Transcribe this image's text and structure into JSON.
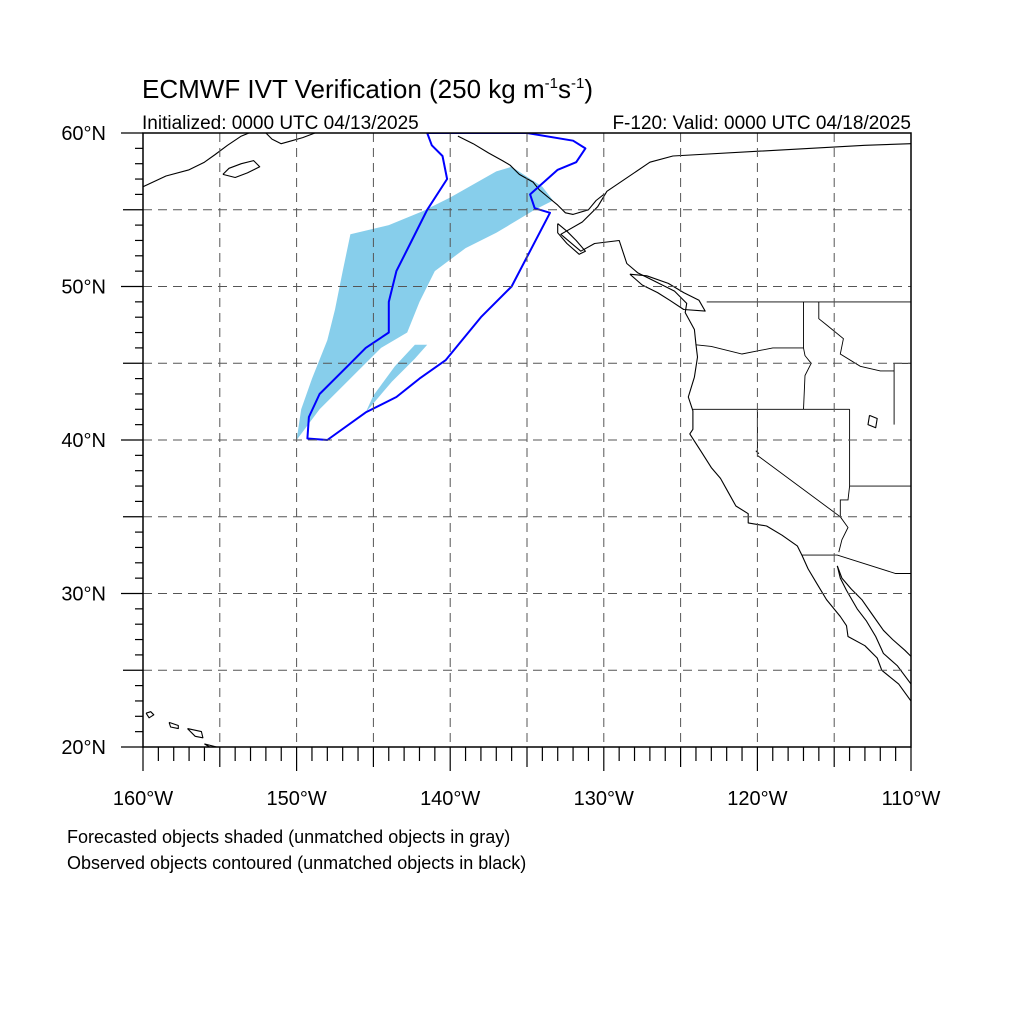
{
  "header": {
    "title_main": "ECMWF IVT Verification (250 kg m",
    "title_sup1": "-1",
    "title_mid": "s",
    "title_sup2": "-1",
    "title_end": ")",
    "initialized": "Initialized: 0000 UTC 04/13/2025",
    "valid": "F-120: Valid: 0000 UTC 04/18/2025"
  },
  "axes": {
    "lon_range": [
      -160,
      -110
    ],
    "lat_range": [
      20,
      60
    ],
    "y_ticks": [
      {
        "value": 20,
        "label": "20°N"
      },
      {
        "value": 30,
        "label": "30°N"
      },
      {
        "value": 40,
        "label": "40°N"
      },
      {
        "value": 50,
        "label": "50°N"
      },
      {
        "value": 60,
        "label": "60°N"
      }
    ],
    "x_ticks": [
      {
        "value": -160,
        "label": "160°W"
      },
      {
        "value": -150,
        "label": "150°W"
      },
      {
        "value": -140,
        "label": "140°W"
      },
      {
        "value": -130,
        "label": "130°W"
      },
      {
        "value": -120,
        "label": "120°W"
      },
      {
        "value": -110,
        "label": "110°W"
      }
    ],
    "grid_spacing_deg": 5
  },
  "colors": {
    "forecast_fill": "#87ceeb",
    "observed_contour": "#0000ff",
    "grid": "#555555",
    "coastline": "#000000"
  },
  "objects": {
    "forecast": [
      {
        "name": "forecast-ivt-object",
        "matched": true,
        "polygon": [
          [
            -150,
            40
          ],
          [
            -148.5,
            42
          ],
          [
            -146,
            44.5
          ],
          [
            -144.5,
            46
          ],
          [
            -142.8,
            47
          ],
          [
            -142,
            49
          ],
          [
            -141,
            51
          ],
          [
            -139,
            52.5
          ],
          [
            -137,
            53.5
          ],
          [
            -134.5,
            55
          ],
          [
            -133.3,
            55.6
          ],
          [
            -134,
            56.5
          ],
          [
            -136,
            57.8
          ],
          [
            -137,
            57.5
          ],
          [
            -140,
            55.8
          ],
          [
            -141.8,
            54.9
          ],
          [
            -144,
            54
          ],
          [
            -146.5,
            53.4
          ],
          [
            -147,
            51
          ],
          [
            -147.5,
            48.5
          ],
          [
            -148,
            46.5
          ],
          [
            -149,
            44
          ],
          [
            -149.7,
            42
          ]
        ]
      },
      {
        "name": "forecast-ivt-fragment",
        "matched": true,
        "polygon": [
          [
            -145.5,
            41.8
          ],
          [
            -143.8,
            43.8
          ],
          [
            -142.3,
            45.3
          ],
          [
            -141.5,
            46.2
          ],
          [
            -142.3,
            46.2
          ],
          [
            -143.6,
            44.8
          ],
          [
            -145,
            42.9
          ]
        ]
      }
    ],
    "observed": [
      {
        "name": "observed-ivt-contour",
        "matched": true,
        "polygon": [
          [
            -148,
            40
          ],
          [
            -145.5,
            41.8
          ],
          [
            -143.5,
            42.8
          ],
          [
            -142,
            44
          ],
          [
            -140.3,
            45.2
          ],
          [
            -138,
            48
          ],
          [
            -136,
            50
          ],
          [
            -133.5,
            54.8
          ],
          [
            -134.5,
            55.1
          ],
          [
            -134.8,
            56
          ],
          [
            -133,
            57.6
          ],
          [
            -131.8,
            58.1
          ],
          [
            -131.2,
            59
          ],
          [
            -132,
            59.5
          ],
          [
            -135,
            60
          ],
          [
            -141.5,
            60
          ],
          [
            -141.2,
            59.2
          ],
          [
            -140.5,
            58.5
          ],
          [
            -140.2,
            57
          ],
          [
            -141.5,
            55
          ],
          [
            -142.5,
            53
          ],
          [
            -143.5,
            51
          ],
          [
            -144,
            49
          ],
          [
            -144,
            47
          ],
          [
            -145.5,
            46
          ],
          [
            -146.5,
            45
          ],
          [
            -148.5,
            43
          ],
          [
            -149.2,
            41.5
          ],
          [
            -149.3,
            40.1
          ]
        ]
      }
    ]
  },
  "coastlines": {
    "north_america": [
      [
        -110,
        59.3
      ],
      [
        -113,
        59.2
      ],
      [
        -125.5,
        58.5
      ],
      [
        -127,
        58.1
      ],
      [
        -129.8,
        56.2
      ],
      [
        -130.4,
        55.2
      ],
      [
        -131.4,
        54.2
      ],
      [
        -132.8,
        53.4
      ],
      [
        -131.5,
        52.3
      ],
      [
        -130.6,
        52.8
      ],
      [
        -129,
        53
      ],
      [
        -128.5,
        51.5
      ],
      [
        -127.8,
        50.9
      ],
      [
        -126.8,
        50.4
      ],
      [
        -125.4,
        49.7
      ],
      [
        -124.6,
        48.9
      ],
      [
        -124.7,
        48.3
      ],
      [
        -124.1,
        47.2
      ],
      [
        -124,
        46.2
      ],
      [
        -123.9,
        45.4
      ],
      [
        -124.1,
        44.1
      ],
      [
        -124.5,
        42.8
      ],
      [
        -124.2,
        41.9
      ],
      [
        -124.2,
        40.7
      ],
      [
        -124.4,
        40.4
      ],
      [
        -123.7,
        39.3
      ],
      [
        -123,
        38.2
      ],
      [
        -122.4,
        37.5
      ],
      [
        -121.9,
        36.6
      ],
      [
        -121.4,
        35.7
      ],
      [
        -120.6,
        35.2
      ],
      [
        -120.6,
        34.6
      ],
      [
        -119.4,
        34.4
      ],
      [
        -118.4,
        33.8
      ],
      [
        -117.4,
        33.1
      ],
      [
        -117.1,
        32.5
      ],
      [
        -116.7,
        31.6
      ],
      [
        -116.1,
        30.6
      ],
      [
        -115.5,
        29.6
      ],
      [
        -114.6,
        28.5
      ],
      [
        -114.2,
        27.9
      ],
      [
        -114.1,
        27.2
      ],
      [
        -113,
        26.6
      ],
      [
        -112.2,
        25.8
      ],
      [
        -111.9,
        25
      ],
      [
        -110.8,
        24.1
      ],
      [
        -110,
        23
      ]
    ],
    "gulf_california": [
      [
        -114.8,
        31.8
      ],
      [
        -114.5,
        31
      ],
      [
        -113.9,
        30.3
      ],
      [
        -113.2,
        29.6
      ],
      [
        -112.5,
        28.6
      ],
      [
        -111.8,
        27.6
      ],
      [
        -111.2,
        27
      ],
      [
        -110.4,
        26.3
      ],
      [
        -110,
        25.9
      ]
    ],
    "mainland_mexico": [
      [
        -110,
        24.1
      ],
      [
        -110.9,
        25.3
      ],
      [
        -111.8,
        26.1
      ],
      [
        -112.3,
        27.2
      ],
      [
        -112.9,
        28.2
      ],
      [
        -113.5,
        29
      ],
      [
        -114.2,
        30.2
      ],
      [
        -114.6,
        31
      ],
      [
        -114.8,
        31.8
      ]
    ],
    "alaska_gulf": [
      [
        -160,
        56.5
      ],
      [
        -158.5,
        57.2
      ],
      [
        -157,
        57.6
      ],
      [
        -156,
        58.1
      ],
      [
        -155.3,
        58.6
      ],
      [
        -154.5,
        59.2
      ],
      [
        -153.6,
        59.8
      ],
      [
        -153.1,
        60
      ]
    ],
    "kenai": [
      [
        -152,
        60
      ],
      [
        -151.6,
        59.6
      ],
      [
        -151,
        59.3
      ],
      [
        -150.3,
        59.5
      ],
      [
        -149.6,
        59.7
      ],
      [
        -148.8,
        60
      ]
    ],
    "prince_william": [
      [
        -147.5,
        60
      ],
      [
        -146,
        60
      ],
      [
        -145,
        60
      ]
    ],
    "alaska_panhandle": [
      [
        -139.5,
        59.8
      ],
      [
        -138.5,
        59.3
      ],
      [
        -137.5,
        58.7
      ],
      [
        -136.6,
        58.2
      ],
      [
        -136.1,
        57.9
      ],
      [
        -135.5,
        57.3
      ],
      [
        -134.6,
        56.8
      ],
      [
        -134.2,
        56.3
      ],
      [
        -133.6,
        55.8
      ],
      [
        -133,
        55.3
      ],
      [
        -132.5,
        54.8
      ],
      [
        -132,
        54.7
      ],
      [
        -131,
        55
      ],
      [
        -130.5,
        55.6
      ],
      [
        -130,
        56
      ]
    ],
    "kodiak": [
      [
        -154.8,
        57.3
      ],
      [
        -154,
        57.1
      ],
      [
        -153.2,
        57.4
      ],
      [
        -152.4,
        57.8
      ],
      [
        -152.8,
        58.2
      ],
      [
        -153.6,
        58
      ],
      [
        -154.4,
        57.7
      ],
      [
        -154.8,
        57.3
      ]
    ],
    "vancouver_island": [
      [
        -128.3,
        50.8
      ],
      [
        -127.5,
        50.1
      ],
      [
        -126.5,
        49.6
      ],
      [
        -125.7,
        49.1
      ],
      [
        -124.8,
        48.5
      ],
      [
        -123.4,
        48.4
      ],
      [
        -123.8,
        49.1
      ],
      [
        -124.8,
        49.6
      ],
      [
        -125.8,
        50.2
      ],
      [
        -127.2,
        50.7
      ],
      [
        -128.3,
        50.8
      ]
    ],
    "haida_gwaii": [
      [
        -133,
        54.1
      ],
      [
        -132.4,
        53.6
      ],
      [
        -131.8,
        53
      ],
      [
        -131.2,
        52.3
      ],
      [
        -131.6,
        52.1
      ],
      [
        -132.4,
        52.8
      ],
      [
        -133,
        53.5
      ],
      [
        -133,
        54.1
      ]
    ],
    "hawaii_kauai": [
      [
        -159.8,
        22.2
      ],
      [
        -159.5,
        22.3
      ],
      [
        -159.3,
        22.1
      ],
      [
        -159.6,
        21.9
      ],
      [
        -159.8,
        22.2
      ]
    ],
    "hawaii_oahu": [
      [
        -158.3,
        21.6
      ],
      [
        -157.7,
        21.4
      ],
      [
        -157.7,
        21.2
      ],
      [
        -158.2,
        21.3
      ],
      [
        -158.3,
        21.6
      ]
    ],
    "hawaii_maui": [
      [
        -157.1,
        21.2
      ],
      [
        -156.2,
        21
      ],
      [
        -156.1,
        20.6
      ],
      [
        -156.6,
        20.7
      ],
      [
        -157.1,
        21.2
      ]
    ],
    "hawaii_big_island": [
      [
        -156,
        20.2
      ],
      [
        -155.2,
        20
      ],
      [
        -155.1,
        19.9
      ],
      [
        -155.5,
        19.9
      ],
      [
        -156,
        20.2
      ]
    ],
    "great_salt_lake": [
      [
        -112.7,
        41.6
      ],
      [
        -112.2,
        41.4
      ],
      [
        -112.3,
        40.8
      ],
      [
        -112.8,
        41
      ],
      [
        -112.7,
        41.6
      ]
    ],
    "lake_tahoe_marker": [
      [
        -120.1,
        39.3
      ],
      [
        -119.9,
        39.1
      ]
    ]
  },
  "borders": {
    "us_canada": [
      [
        -123.3,
        49
      ],
      [
        -110,
        49
      ]
    ],
    "mexico_us": [
      [
        -117.1,
        32.5
      ],
      [
        -114.8,
        32.5
      ],
      [
        -111,
        31.3
      ],
      [
        -110,
        31.3
      ]
    ],
    "wa_or": [
      [
        -124,
        46.2
      ],
      [
        -123,
        46.1
      ],
      [
        -121,
        45.6
      ],
      [
        -119,
        46
      ],
      [
        -117,
        46
      ]
    ],
    "id_west": [
      [
        -117,
        49
      ],
      [
        -117,
        46
      ],
      [
        -116.9,
        45.5
      ],
      [
        -116.5,
        45
      ],
      [
        -116.9,
        44.2
      ],
      [
        -117,
        42
      ]
    ],
    "id_mt": [
      [
        -116,
        49
      ],
      [
        -116,
        47.9
      ],
      [
        -115.5,
        47.5
      ],
      [
        -114.4,
        46.6
      ],
      [
        -114.6,
        45.6
      ],
      [
        -113.3,
        44.8
      ],
      [
        -112,
        44.5
      ],
      [
        -111.1,
        44.5
      ]
    ],
    "wy_west": [
      [
        -111.1,
        45
      ],
      [
        -111.1,
        41
      ]
    ],
    "or_ca_nv": [
      [
        -124.2,
        42
      ],
      [
        -114,
        42
      ]
    ],
    "ca_nv": [
      [
        -120,
        42
      ],
      [
        -120,
        39
      ],
      [
        -114.6,
        35
      ]
    ],
    "nv_ut": [
      [
        -114,
        42
      ],
      [
        -114,
        37
      ],
      [
        -114.1,
        36.1
      ],
      [
        -114.6,
        36.1
      ],
      [
        -114.6,
        35
      ]
    ],
    "ut_az": [
      [
        -114,
        37
      ],
      [
        -110,
        37
      ]
    ],
    "ca_az": [
      [
        -114.6,
        35
      ],
      [
        -114.1,
        34.3
      ],
      [
        -114.5,
        33.5
      ],
      [
        -114.7,
        32.7
      ]
    ],
    "mt_north": [
      [
        -110,
        45
      ],
      [
        -111.1,
        45
      ]
    ]
  },
  "footer": {
    "line1": "Forecasted objects shaded (unmatched objects in gray)",
    "line2": "Observed objects contoured (unmatched objects in black)"
  }
}
